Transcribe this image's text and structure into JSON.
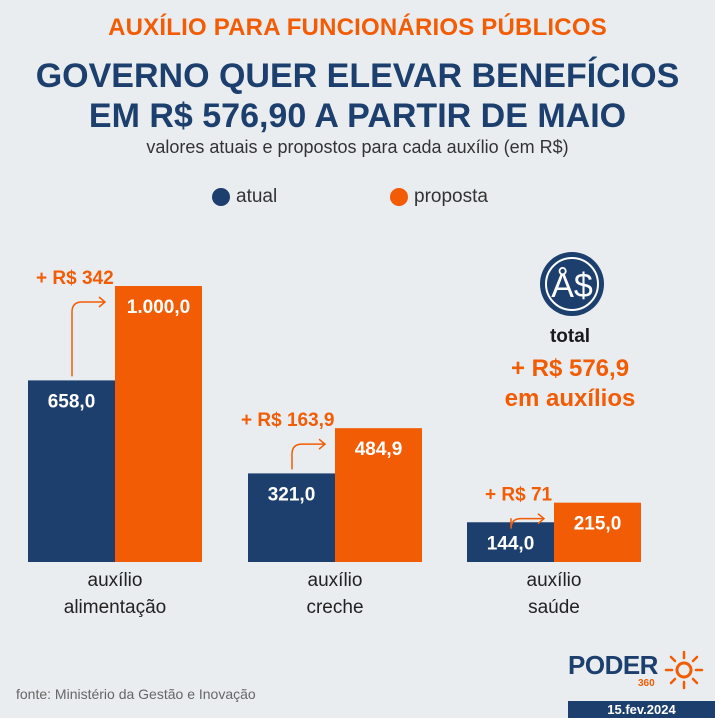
{
  "header": {
    "kicker": "AUXÍLIO PARA FUNCIONÁRIOS PÚBLICOS",
    "title_line1": "GOVERNO QUER ELEVAR BENEFÍCIOS",
    "title_line2": "EM R$ 576,90 A PARTIR DE MAIO",
    "subtitle": "valores atuais e propostos para cada auxílio (em R$)"
  },
  "colors": {
    "atual": "#1d3f6e",
    "proposta": "#f25c05"
  },
  "chart_data": {
    "type": "bar",
    "categories": [
      "auxílio\nalimentação",
      "auxílio\ncreche",
      "auxílio\nsaúde"
    ],
    "series": [
      {
        "name": "atual",
        "values": [
          658.0,
          321.0,
          144.0
        ],
        "labels": [
          "658,0",
          "321,0",
          "144,0"
        ]
      },
      {
        "name": "proposta",
        "values": [
          1000.0,
          484.9,
          215.0
        ],
        "labels": [
          "1.000,0",
          "484,9",
          "215,0"
        ]
      }
    ],
    "annotations": [
      "+ R$ 342",
      "+ R$ 163,9",
      "+ R$ 71"
    ],
    "legend": [
      "atual",
      "proposta"
    ],
    "legend_placement": "top-center",
    "ylim": [
      0,
      1000
    ],
    "grid": false
  },
  "total": {
    "icon": "money-bag-icon",
    "label": "total",
    "value_line1": "+ R$ 576,9",
    "value_line2": "em auxílios"
  },
  "footer": {
    "source": "fonte: Ministério da Gestão e Inovação",
    "logo": "PODER",
    "logo_suffix": "360",
    "date": "15.fev.2024"
  }
}
